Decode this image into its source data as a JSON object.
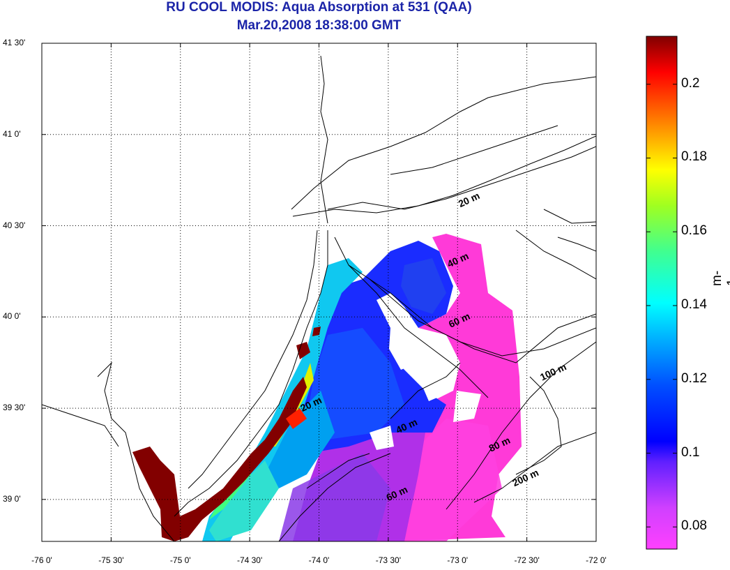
{
  "title": {
    "line1": "RU COOL MODIS: Aqua Absorption at 531 (QAA)",
    "line2": "Mar.20,2008 18:38:00 GMT"
  },
  "axes": {
    "y_ticks": [
      "41 30'",
      "41 0'",
      "40 30'",
      "40 0'",
      "39 30'",
      "39 0'"
    ],
    "x_ticks": [
      "-76 0'",
      "-75 30'",
      "-75 0'",
      "-74 30'",
      "-74 0'",
      "-73 30'",
      "-73 0'",
      "-72 30'",
      "-72 0'"
    ],
    "lon_range": [
      -76.0,
      -72.0
    ],
    "lat_range": [
      38.77,
      41.5
    ],
    "grid": "dotted"
  },
  "colorbar": {
    "ticks": [
      "0.2",
      "0.18",
      "0.16",
      "0.14",
      "0.12",
      "0.1",
      "0.08"
    ],
    "range": [
      0.074,
      0.213
    ],
    "unit": "m-1",
    "colormap": [
      "#ff40ff",
      "#c040ff",
      "#8040ff",
      "#0000ff",
      "#0080ff",
      "#00ffff",
      "#40ff80",
      "#80ff00",
      "#ffff00",
      "#ff8000",
      "#ff0000",
      "#800000"
    ]
  },
  "contour_labels": [
    {
      "text": "20 m",
      "lon": -72.98,
      "lat": 40.6
    },
    {
      "text": "40 m",
      "lon": -73.06,
      "lat": 40.27
    },
    {
      "text": "60 m",
      "lon": -73.05,
      "lat": 39.94
    },
    {
      "text": "100 m",
      "lon": -72.39,
      "lat": 39.65
    },
    {
      "text": "20 m",
      "lon": -74.12,
      "lat": 39.48
    },
    {
      "text": "40 m",
      "lon": -73.43,
      "lat": 39.36
    },
    {
      "text": "80 m",
      "lon": -72.76,
      "lat": 39.26
    },
    {
      "text": "200 m",
      "lon": -72.59,
      "lat": 39.07
    },
    {
      "text": "60 m",
      "lon": -73.5,
      "lat": 38.99
    }
  ]
}
